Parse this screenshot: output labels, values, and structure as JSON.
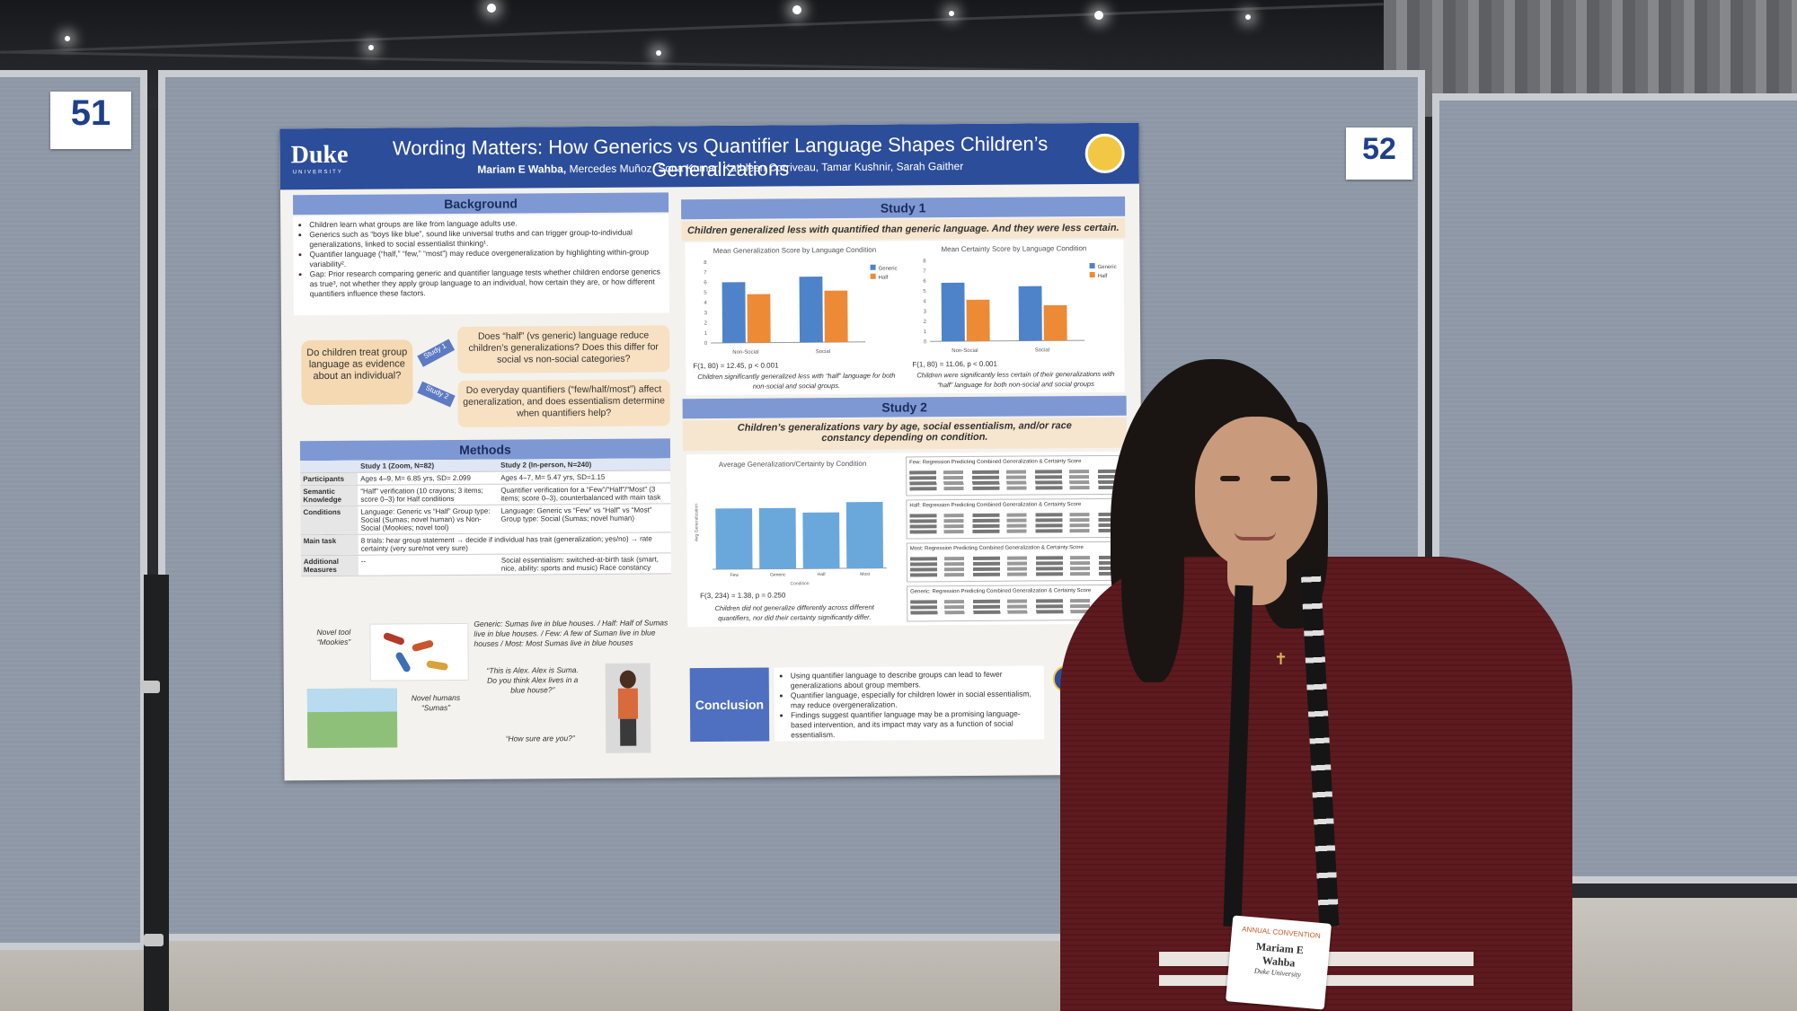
{
  "booth_numbers": {
    "left": "51",
    "right": "52"
  },
  "poster": {
    "logo": "Duke",
    "logo_sub": "UNIVERSITY",
    "title": "Wording Matters: How Generics vs Quantifier Language Shapes Children’s Generalizations",
    "lead_author": "Mariam E Wahba,",
    "coauthors": "Mercedes Muñoz, Sona Kumar, Kathleen Corriveau, Tamar Kushnir, Sarah Gaither",
    "background": {
      "heading": "Background",
      "bullets": [
        "Children learn what groups are like from language adults use.",
        "Generics such as “boys like blue”, sound like universal truths and can trigger group-to-individual generalizations, linked to social essentialist thinking¹.",
        "Quantifier language (“half,” “few,” “most”) may reduce overgeneralization by highlighting within-group variability².",
        "Gap: Prior research comparing generic and quantifier language tests whether children endorse generics as true³, not whether they apply group language to an individual, how certain they are, or how different quantifiers influence these factors."
      ]
    },
    "question_main": "Do children treat group language as evidence about an individual?",
    "study1_tag": "Study 1",
    "study2_tag": "Study 2",
    "question_study1": "Does “half” (vs generic) language reduce children’s generalizations? Does this differ for social vs non-social categories?",
    "question_study2": "Do everyday quantifiers (“few/half/most”) affect generalization, and does essentialism determine when quantifiers help?",
    "methods": {
      "heading": "Methods",
      "col1": "Study 1 (Zoom, N=82)",
      "col2": "Study 2 (In-person, N=240)",
      "rows": [
        {
          "label": "Participants",
          "s1": "Ages 4–9, M= 6.85 yrs, SD= 2.099",
          "s2": "Ages 4–7, M= 5.47 yrs, SD=1.15"
        },
        {
          "label": "Semantic Knowledge",
          "s1": "“Half” verification (10 crayons; 3 items; score 0–3) for Half conditions",
          "s2": "Quantifier verification for a “Few”/“Half”/“Most” (3 items; score 0–3), counterbalanced with main task"
        },
        {
          "label": "Conditions",
          "s1": "Language: Generic vs “Half” Group type: Social (Sumas; novel human) vs Non-Social (Mookies; novel tool)",
          "s2": "Language: Generic vs “Few” vs “Half” vs “Most” Group type: Social (Sumas; novel human)"
        },
        {
          "label": "Main task",
          "s1": "8 trials: hear group statement → decide if individual has trait (generalization; yes/no) → rate certainty (very sure/not very sure)",
          "s2": ""
        },
        {
          "label": "Additional Measures",
          "s1": "--",
          "s2": "Social essentialism: switched-at-birth task (smart, nice, ability: sports and music) Race constancy"
        }
      ]
    },
    "illustrations": {
      "novel_tool": "Novel tool “Mookies”",
      "novel_humans": "Novel humans “Sumas”",
      "statements": "Generic: Sumas live in blue houses. / Half: Half of Sumas live in blue houses. / Few: A few of Suman live in blue houses / Most: Most Sumas live in blue houses",
      "prompt": "“This is Alex. Alex is Suma. Do you think Alex lives in a blue house?”",
      "certainty": "“How sure are you?”"
    },
    "study1": {
      "heading": "Study 1",
      "banner": "Children generalized less with quantified than generic language. And they were less certain.",
      "stat1": "F(1, 80) = 12.45, p < 0.001",
      "caption1": "Children significantly generalized less with “half” language for both non-social and social groups.",
      "stat2": "F(1, 80) = 11.06, p < 0.001",
      "caption2": "Children were significantly less certain of their generalizations with “half” language for both non-social and social groups"
    },
    "study2": {
      "heading": "Study 2",
      "banner": "Children’s generalizations vary by age, social essentialism, and/or race constancy depending on condition.",
      "stat": "F(3, 234) = 1.38, p = 0.250",
      "caption": "Children did not generalize differently across different quantifiers, nor did their certainty significantly differ.",
      "tables": [
        "Few: Regression Predicting Combined Generalization & Certainty Score",
        "Half: Regression Predicting Combined Generalization & Certainty Score",
        "Most: Regression Predicting Combined Generalization & Certainty Score",
        "Generic: Regression Predicting Combined Generalization & Certainty Score"
      ]
    },
    "conclusion": {
      "heading": "Conclusion",
      "bullets": [
        "Using quantifier language to describe groups can lead to fewer generalizations about group members.",
        "Quantifier language, especially for children lower in social essentialism, may reduce overgeneralization.",
        "Findings suggest quantifier language may be a promising language-based intervention, and its impact may vary as a function of social essentialism."
      ]
    }
  },
  "chart_data": [
    {
      "type": "bar",
      "title": "Mean Generalization Score by Language Condition",
      "categories": [
        "Non-Social",
        "Social"
      ],
      "series": [
        {
          "name": "Generic",
          "values": [
            6.0,
            6.5
          ],
          "color": "#4f83c9"
        },
        {
          "name": "Half",
          "values": [
            4.8,
            5.1
          ],
          "color": "#ec8a36"
        }
      ],
      "ylim": [
        0,
        8
      ],
      "yticks": [
        "0",
        "1",
        "2",
        "3",
        "4",
        "5",
        "6",
        "7",
        "8"
      ]
    },
    {
      "type": "bar",
      "title": "Mean Certainty Score by Language Condition",
      "categories": [
        "Non-Social",
        "Social"
      ],
      "series": [
        {
          "name": "Generic",
          "values": [
            5.8,
            5.4
          ],
          "color": "#4f83c9"
        },
        {
          "name": "Half",
          "values": [
            4.1,
            3.5
          ],
          "color": "#ec8a36"
        }
      ],
      "ylim": [
        0,
        8
      ],
      "yticks": [
        "0",
        "1",
        "2",
        "3",
        "4",
        "5",
        "6",
        "7",
        "8"
      ]
    },
    {
      "type": "bar",
      "title": "Average Generalization/Certainty by Condition",
      "categories": [
        "Few",
        "Generic",
        "Half",
        "Most"
      ],
      "values": [
        0.78,
        0.78,
        0.72,
        0.85
      ],
      "ylim": [
        0,
        1.2
      ],
      "ylabel": "Avg Generalization",
      "xlabel": "Condition"
    }
  ],
  "badge": {
    "title": "ANNUAL CONVENTION",
    "name_line1": "Mariam E",
    "name_line2": "Wahba",
    "affiliation": "Duke University"
  }
}
